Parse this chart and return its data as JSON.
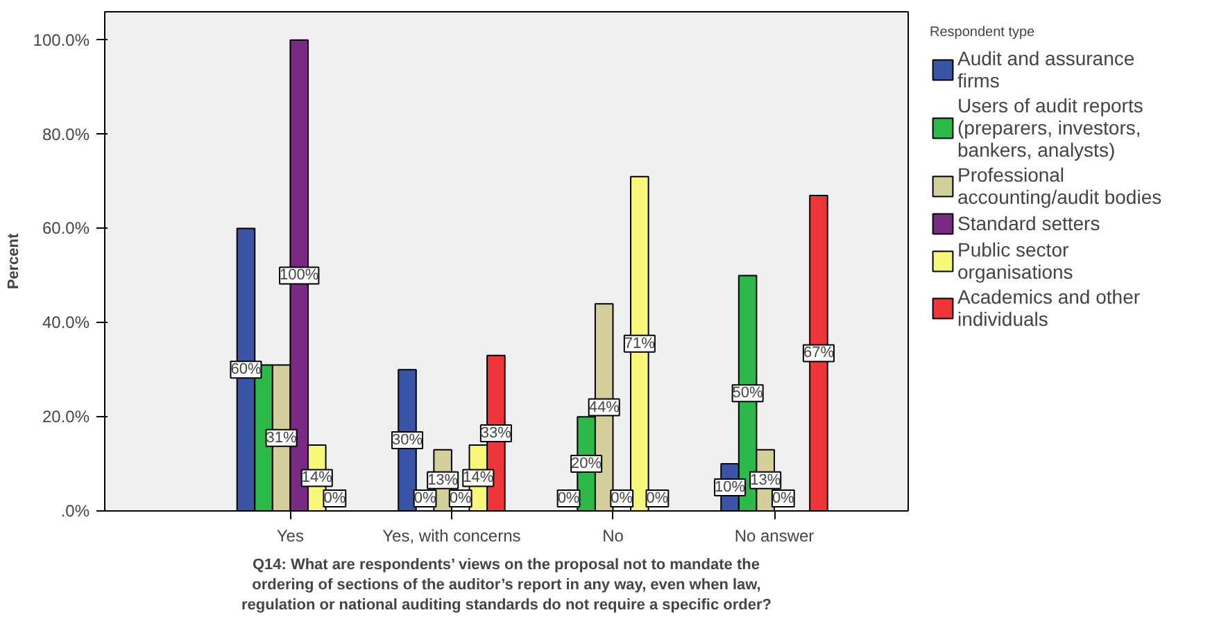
{
  "chart_data": {
    "type": "bar",
    "xlabel": "Q14: What are respondents’ views on the proposal not to mandate the ordering of sections of the auditor’s report in any way, even when law, regulation or national auditing standards do not require a specific order?",
    "ylabel": "Percent",
    "legend_title": "Respondent type",
    "categories": [
      "Yes",
      "Yes, with concerns",
      "No",
      "No answer"
    ],
    "series": [
      {
        "name": "Audit and assurance firms",
        "color": "#3a55a8",
        "values": [
          60,
          30,
          0,
          10
        ],
        "value_labels": [
          "60%",
          "30%",
          "0%",
          "10%"
        ]
      },
      {
        "name": "Users of audit reports (preparers, investors, bankers, analysts)",
        "color": "#2db84a",
        "values": [
          31,
          0,
          20,
          50
        ],
        "value_labels": [
          null,
          "0%",
          "20%",
          "50%"
        ]
      },
      {
        "name": "Professional accounting/audit bodies",
        "color": "#d4cf9a",
        "values": [
          31,
          13,
          44,
          13
        ],
        "value_labels": [
          "31%",
          "13%",
          "44%",
          "13%"
        ]
      },
      {
        "name": "Standard setters",
        "color": "#7b2a84",
        "values": [
          100,
          0,
          0,
          0
        ],
        "value_labels": [
          "100%",
          "0%",
          "0%",
          "0%"
        ]
      },
      {
        "name": "Public sector organisations",
        "color": "#f7f77a",
        "values": [
          14,
          14,
          71,
          0
        ],
        "value_labels": [
          "14%",
          "14%",
          "71%",
          null
        ]
      },
      {
        "name": "Academics and other individuals",
        "color": "#ee3538",
        "values": [
          0,
          33,
          0,
          67
        ],
        "value_labels": [
          "0%",
          "33%",
          "0%",
          "67%"
        ]
      }
    ],
    "ylim": [
      0,
      106
    ],
    "yticks": [
      {
        "value": 0,
        "label": ".0%"
      },
      {
        "value": 20,
        "label": "20.0%"
      },
      {
        "value": 40,
        "label": "40.0%"
      },
      {
        "value": 60,
        "label": "60.0%"
      },
      {
        "value": 80,
        "label": "80.0%"
      },
      {
        "value": 100,
        "label": "100.0%"
      }
    ],
    "grid": false,
    "legend": "right"
  }
}
